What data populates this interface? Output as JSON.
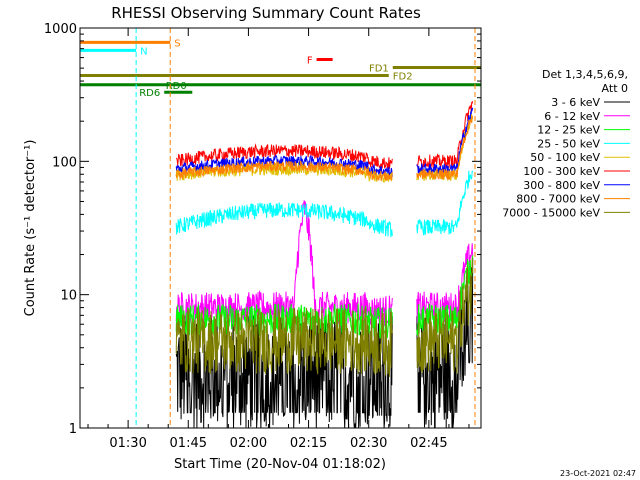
{
  "chart_data": {
    "type": "line",
    "title": "RHESSI Observing Summary Count Rates",
    "xlabel": "Start Time (20-Nov-04 01:18:02)",
    "ylabel": "Count Rate (s⁻¹ detector⁻¹)",
    "y_scale": "log",
    "ylim": [
      1,
      1000
    ],
    "xlim_minutes": [
      78,
      178
    ],
    "x_ticks": [
      {
        "label": "01:30",
        "minutes": 90
      },
      {
        "label": "01:45",
        "minutes": 105
      },
      {
        "label": "02:00",
        "minutes": 120
      },
      {
        "label": "02:15",
        "minutes": 135
      },
      {
        "label": "02:30",
        "minutes": 150
      },
      {
        "label": "02:45",
        "minutes": 165
      }
    ],
    "y_ticks": [
      {
        "label": "1",
        "value": 1
      },
      {
        "label": "10",
        "value": 10
      },
      {
        "label": "100",
        "value": 100
      },
      {
        "label": "1000",
        "value": 1000
      }
    ],
    "legend_header": [
      "Det 1,3,4,5,6,9,",
      "Att 0"
    ],
    "legend_position": "right",
    "series": [
      {
        "name": "3 - 6 keV",
        "color": "#000000",
        "level": 2.6,
        "noise": 0.45,
        "jumpy": true
      },
      {
        "name": "6 - 12 keV",
        "color": "#ff00ff",
        "level": 8.0,
        "noise": 0.12,
        "peak": {
          "minutes": 134,
          "value": 45
        }
      },
      {
        "name": "12 - 25 keV",
        "color": "#00ff00",
        "level": 6.5,
        "noise": 0.12
      },
      {
        "name": "25 - 50 keV",
        "color": "#00ffff",
        "level": 32,
        "noise": 0.06,
        "hump": 1.35
      },
      {
        "name": "50 - 100 keV",
        "color": "#e0c000",
        "level": 80,
        "noise": 0.05,
        "hump": 1.1
      },
      {
        "name": "100 - 300 keV",
        "color": "#ff0000",
        "level": 100,
        "noise": 0.05,
        "hump": 1.2
      },
      {
        "name": "300 - 800 keV",
        "color": "#0000ff",
        "level": 88,
        "noise": 0.04,
        "hump": 1.15
      },
      {
        "name": "800 - 7000 keV",
        "color": "#ff8000",
        "level": 80,
        "noise": 0.04,
        "hump": 1.15
      },
      {
        "name": "7000 - 15000 keV",
        "color": "#808000",
        "level": 4.5,
        "noise": 0.25
      }
    ],
    "flags": [
      {
        "label": "S",
        "color": "#ff8000",
        "start": 78,
        "end": 100.5,
        "value": 780
      },
      {
        "label": "N",
        "color": "#00ffff",
        "start": 78,
        "end": 92,
        "value": 680
      },
      {
        "label": "F",
        "color": "#ff0000",
        "start": 137,
        "end": 141,
        "value": 580
      },
      {
        "label": "FD1",
        "color": "#808000",
        "start": 156,
        "end": 178,
        "value": 505
      },
      {
        "label": "FD2",
        "color": "#808000",
        "start": 78,
        "end": 155,
        "value": 440
      },
      {
        "label": "RD0",
        "color": "#008000",
        "start": 78,
        "end": 178,
        "value": 375
      },
      {
        "label": "RD6",
        "color": "#008000",
        "start": 99,
        "end": 106,
        "value": 330
      }
    ],
    "vertical_lines": [
      {
        "minutes": 92,
        "color": "#00ffff",
        "style": "dashed"
      },
      {
        "minutes": 100.5,
        "color": "#ff8000",
        "style": "dashed"
      },
      {
        "minutes": 176.5,
        "color": "#ff8000",
        "style": "dashed"
      }
    ],
    "eclipse_gaps": [
      {
        "start": 78,
        "end": 102
      },
      {
        "start": 156,
        "end": 162
      },
      {
        "start": 176,
        "end": 178
      }
    ],
    "grid": false
  },
  "footer": {
    "timestamp": "23-Oct-2021 02:47"
  }
}
